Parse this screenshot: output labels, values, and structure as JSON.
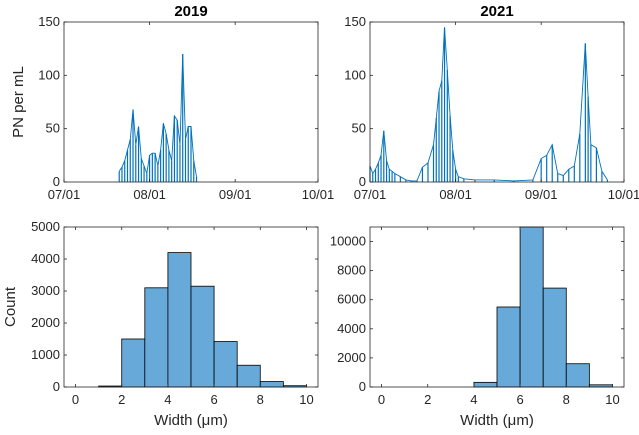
{
  "chart_data": [
    {
      "type": "line",
      "title": "2019",
      "xlabel": "",
      "ylabel": "PN per mL",
      "x_tick_labels": [
        "07/01",
        "08/01",
        "09/01",
        "10/01"
      ],
      "x_ticks": [
        "2019-07-01",
        "2019-08-01",
        "2019-09-01",
        "2019-10-01"
      ],
      "y_ticks": [
        0,
        50,
        100,
        150
      ],
      "ylim": [
        0,
        150
      ],
      "series": [
        {
          "color": "#0072bd",
          "x": [
            "2019-07-21",
            "2019-07-22",
            "2019-07-23",
            "2019-07-24",
            "2019-07-25",
            "2019-07-26",
            "2019-07-27",
            "2019-07-28",
            "2019-07-29",
            "2019-07-30",
            "2019-07-31",
            "2019-08-01",
            "2019-08-02",
            "2019-08-03",
            "2019-08-04",
            "2019-08-05",
            "2019-08-06",
            "2019-08-07",
            "2019-08-08",
            "2019-08-09",
            "2019-08-10",
            "2019-08-11",
            "2019-08-12",
            "2019-08-13",
            "2019-08-14",
            "2019-08-15",
            "2019-08-16",
            "2019-08-17",
            "2019-08-18"
          ],
          "y": [
            10,
            14,
            20,
            30,
            40,
            68,
            35,
            52,
            22,
            15,
            8,
            25,
            27,
            27,
            15,
            30,
            55,
            45,
            30,
            20,
            62,
            58,
            35,
            120,
            40,
            52,
            52,
            20,
            5
          ]
        }
      ]
    },
    {
      "type": "line",
      "title": "2021",
      "xlabel": "",
      "ylabel": "",
      "x_tick_labels": [
        "07/01",
        "08/01",
        "09/01",
        "10/01"
      ],
      "x_ticks": [
        "2021-07-01",
        "2021-08-01",
        "2021-09-01",
        "2021-10-01"
      ],
      "y_ticks": [
        0,
        50,
        100,
        150
      ],
      "ylim": [
        0,
        150
      ],
      "series": [
        {
          "color": "#0072bd",
          "x": [
            "2021-07-01",
            "2021-07-02",
            "2021-07-03",
            "2021-07-04",
            "2021-07-05",
            "2021-07-06",
            "2021-07-07",
            "2021-07-08",
            "2021-07-09",
            "2021-07-10",
            "2021-07-12",
            "2021-07-14",
            "2021-07-16",
            "2021-07-18",
            "2021-07-20",
            "2021-07-22",
            "2021-07-24",
            "2021-07-25",
            "2021-07-26",
            "2021-07-27",
            "2021-07-28",
            "2021-07-29",
            "2021-07-30",
            "2021-07-31",
            "2021-08-01",
            "2021-08-02",
            "2021-08-04",
            "2021-08-08",
            "2021-08-15",
            "2021-08-22",
            "2021-08-29",
            "2021-09-01",
            "2021-09-03",
            "2021-09-05",
            "2021-09-07",
            "2021-09-09",
            "2021-09-11",
            "2021-09-13",
            "2021-09-15",
            "2021-09-17",
            "2021-09-18",
            "2021-09-19",
            "2021-09-21",
            "2021-09-23",
            "2021-09-25"
          ],
          "y": [
            15,
            8,
            12,
            18,
            25,
            48,
            20,
            12,
            10,
            8,
            5,
            2,
            1,
            1,
            14,
            18,
            35,
            60,
            85,
            95,
            145,
            105,
            62,
            30,
            12,
            5,
            3,
            2,
            2,
            1,
            2,
            22,
            25,
            35,
            8,
            6,
            12,
            15,
            45,
            130,
            80,
            35,
            32,
            10,
            2
          ]
        }
      ]
    },
    {
      "type": "bar",
      "title": "",
      "xlabel": "Width (μm)",
      "ylabel": "Count",
      "bin_edges": [
        0,
        1,
        2,
        3,
        4,
        5,
        6,
        7,
        8,
        9,
        10
      ],
      "values": [
        0,
        30,
        1500,
        3100,
        4200,
        3150,
        1420,
        680,
        170,
        40
      ],
      "x_ticks": [
        0,
        2,
        4,
        6,
        8,
        10
      ],
      "y_ticks": [
        0,
        1000,
        2000,
        3000,
        4000,
        5000
      ],
      "xlim": [
        -0.5,
        10.5
      ],
      "ylim": [
        0,
        5000
      ],
      "color": "#67a9d8"
    },
    {
      "type": "bar",
      "title": "",
      "xlabel": "Width (μm)",
      "ylabel": "",
      "bin_edges": [
        0,
        1,
        2,
        3,
        4,
        5,
        6,
        7,
        8,
        9,
        10
      ],
      "values": [
        0,
        0,
        0,
        0,
        320,
        5500,
        11000,
        6800,
        1600,
        150
      ],
      "x_ticks": [
        0,
        2,
        4,
        6,
        8,
        10
      ],
      "y_ticks": [
        0,
        2000,
        4000,
        6000,
        8000,
        10000
      ],
      "xlim": [
        -0.5,
        10.5
      ],
      "ylim": [
        0,
        11000
      ],
      "color": "#67a9d8"
    }
  ]
}
